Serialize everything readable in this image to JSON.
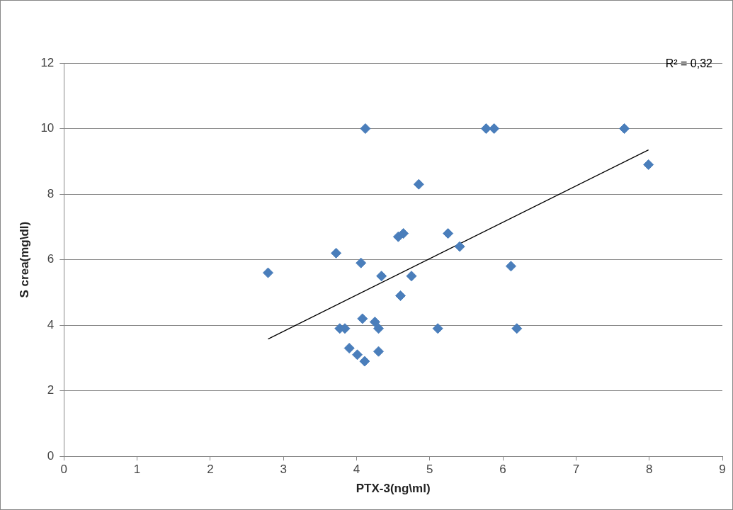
{
  "chart_data": {
    "type": "scatter",
    "xlabel": "PTX-3(ng\\ml)",
    "ylabel": "S crea(mg\\dl)",
    "xlim": [
      0,
      9
    ],
    "xticks": [
      0,
      1,
      2,
      3,
      4,
      5,
      6,
      7,
      8,
      9
    ],
    "ylim": [
      0,
      12
    ],
    "yticks": [
      0,
      2,
      4,
      6,
      8,
      10,
      12
    ],
    "grid": "y",
    "legend": false,
    "marker": "diamond",
    "annotations": [
      "R² = 0,32"
    ],
    "series": [
      {
        "type": "scatter",
        "color": "#4a7ebb",
        "x": [
          2.79,
          3.72,
          4.06,
          4.12,
          4.34,
          4.57,
          4.64,
          4.85,
          4.75,
          4.6,
          4.08,
          3.77,
          3.84,
          4.25,
          4.3,
          3.9,
          4.01,
          4.11,
          4.3,
          5.11,
          5.25,
          5.41,
          5.77,
          5.88,
          6.11,
          6.19,
          7.66,
          7.99
        ],
        "values": [
          5.6,
          6.2,
          5.9,
          10,
          5.5,
          6.7,
          6.8,
          8.3,
          5.5,
          4.9,
          4.2,
          3.9,
          3.9,
          4.1,
          3.9,
          3.3,
          3.1,
          2.9,
          3.2,
          3.9,
          6.8,
          6.4,
          10,
          10,
          5.8,
          3.9,
          10,
          8.9
        ]
      },
      {
        "type": "line",
        "color": "#000000",
        "marker": "none",
        "x": [
          2.79,
          7.99
        ],
        "values": [
          3.58,
          9.35
        ]
      }
    ]
  }
}
